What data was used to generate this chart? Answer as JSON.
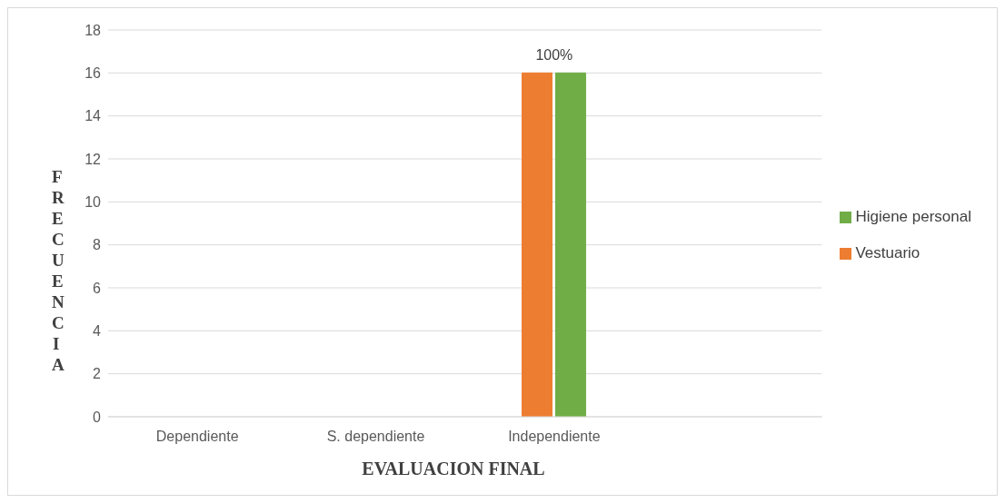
{
  "chart_data": {
    "type": "bar",
    "categories": [
      "Dependiente",
      "S. dependiente",
      "Independiente",
      null
    ],
    "series": [
      {
        "name": "Vestuario",
        "color": "#ed7d31",
        "values": [
          null,
          null,
          16,
          null
        ]
      },
      {
        "name": "Higiene personal",
        "color": "#70ad47",
        "values": [
          null,
          null,
          16,
          null
        ]
      }
    ],
    "xlabel": "EVALUACION FINAL",
    "ylabel": "FRECUENCIA",
    "ylim": [
      0,
      18
    ],
    "yticks": [
      0,
      2,
      4,
      6,
      8,
      10,
      12,
      14,
      16,
      18
    ],
    "annotations": [
      {
        "text": "100%",
        "x": "Independiente",
        "y": 16
      }
    ],
    "grid": "y",
    "legend": "right"
  }
}
